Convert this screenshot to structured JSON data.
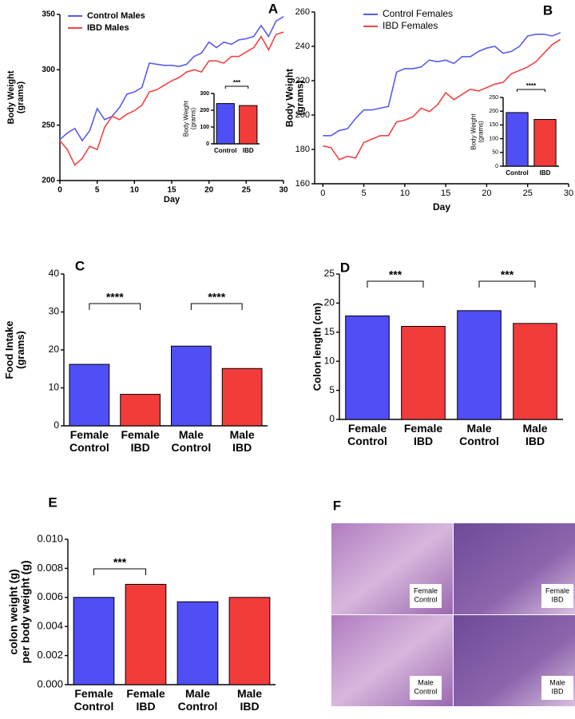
{
  "chart_data": [
    {
      "type": "line",
      "panel": "A",
      "xlabel": "Day",
      "ylabel": "Body Weight (grams)",
      "x": [
        0,
        1,
        2,
        3,
        4,
        5,
        6,
        7,
        8,
        9,
        10,
        11,
        12,
        13,
        14,
        15,
        16,
        17,
        18,
        19,
        20,
        21,
        22,
        23,
        24,
        25,
        26,
        27,
        28,
        29,
        30
      ],
      "series": [
        {
          "name": "Control Males",
          "color": "#5a5af0",
          "values": [
            237,
            243,
            247,
            236,
            245,
            265,
            255,
            258,
            266,
            278,
            280,
            284,
            306,
            305,
            304,
            304,
            303,
            305,
            312,
            315,
            325,
            320,
            325,
            323,
            327,
            328,
            330,
            340,
            330,
            344,
            348
          ]
        },
        {
          "name": "IBD Males",
          "color": "#f04444",
          "values": [
            236,
            228,
            214,
            220,
            231,
            228,
            248,
            258,
            255,
            260,
            263,
            268,
            280,
            282,
            286,
            290,
            293,
            298,
            300,
            298,
            308,
            308,
            306,
            312,
            312,
            316,
            320,
            330,
            318,
            332,
            334
          ]
        }
      ],
      "xlim": [
        0,
        30
      ],
      "xticks": [
        0,
        5,
        10,
        15,
        20,
        25,
        30
      ],
      "ylim": [
        200,
        350
      ],
      "yticks": [
        200,
        250,
        300,
        350
      ]
    },
    {
      "type": "bar",
      "ylabel": "Body Weight (grams)",
      "categories": [
        "Control",
        "IBD"
      ],
      "values": [
        240,
        228
      ],
      "colors": [
        "#4f4ff5",
        "#f23c3c"
      ],
      "ylim": [
        0,
        300
      ],
      "yticks": [
        0,
        100,
        200,
        300
      ],
      "annotations": [
        "***"
      ]
    },
    {
      "type": "line",
      "panel": "B",
      "xlabel": "Day",
      "ylabel": "Body Weight (grams)",
      "x": [
        0,
        1,
        2,
        3,
        4,
        5,
        6,
        7,
        8,
        9,
        10,
        11,
        12,
        13,
        14,
        15,
        16,
        17,
        18,
        19,
        20,
        21,
        22,
        23,
        24,
        25,
        26,
        27,
        28,
        29
      ],
      "series": [
        {
          "name": "Control Females",
          "color": "#5a5af0",
          "values": [
            188,
            188,
            191,
            192,
            198,
            203,
            203,
            204,
            205,
            225,
            227,
            227,
            228,
            232,
            231,
            232,
            230,
            234,
            234,
            237,
            239,
            240,
            236,
            237,
            240,
            246,
            247,
            247,
            246,
            248
          ]
        },
        {
          "name": "IBD Females",
          "color": "#f04444",
          "values": [
            182,
            181,
            174,
            176,
            175,
            184,
            186,
            188,
            188,
            196,
            197,
            199,
            204,
            202,
            206,
            213,
            209,
            212,
            215,
            214,
            216,
            218,
            219,
            224,
            226,
            228,
            231,
            236,
            241,
            244
          ]
        }
      ],
      "xlim": [
        -1,
        30
      ],
      "xticks": [
        0,
        5,
        10,
        15,
        20,
        25,
        30
      ],
      "ylim": [
        160,
        260
      ],
      "yticks": [
        160,
        180,
        200,
        220,
        240,
        260
      ]
    },
    {
      "type": "bar",
      "ylabel": "Body Weight (grams)",
      "categories": [
        "Control",
        "IBD"
      ],
      "values": [
        195,
        170
      ],
      "colors": [
        "#4f4ff5",
        "#f23c3c"
      ],
      "ylim": [
        0,
        250
      ],
      "yticks": [
        0,
        50,
        100,
        150,
        200,
        250
      ],
      "annotations": [
        "****"
      ]
    },
    {
      "type": "bar",
      "panel": "C",
      "ylabel": "Food Intake (grams)",
      "categories": [
        "Female Control",
        "Female IBD",
        "Male Control",
        "Male IBD"
      ],
      "values": [
        16.2,
        8.3,
        21.0,
        15.1
      ],
      "colors": [
        "#4f4ff5",
        "#f23c3c",
        "#4f4ff5",
        "#f23c3c"
      ],
      "ylim": [
        0,
        40
      ],
      "yticks": [
        0,
        10,
        20,
        30,
        40
      ],
      "annotations": [
        "****",
        "****"
      ]
    },
    {
      "type": "bar",
      "panel": "D",
      "ylabel": "Colon length (cm)",
      "categories": [
        "Female Control",
        "Female IBD",
        "Male Control",
        "Male IBD"
      ],
      "values": [
        17.8,
        16.0,
        18.7,
        16.5
      ],
      "colors": [
        "#4f4ff5",
        "#f23c3c",
        "#4f4ff5",
        "#f23c3c"
      ],
      "ylim": [
        0,
        25
      ],
      "yticks": [
        0,
        5,
        10,
        15,
        20,
        25
      ],
      "annotations": [
        "***",
        "***"
      ]
    },
    {
      "type": "bar",
      "panel": "E",
      "ylabel": "colon weight (g) per body weight (g)",
      "categories": [
        "Female Control",
        "Female IBD",
        "Male Control",
        "Male IBD"
      ],
      "values": [
        0.006,
        0.0069,
        0.0057,
        0.006
      ],
      "colors": [
        "#4f4ff5",
        "#f23c3c",
        "#4f4ff5",
        "#f23c3c"
      ],
      "ylim": [
        0,
        0.01
      ],
      "yticks": [
        {
          "value": 0,
          "label": "0.000"
        },
        {
          "value": 0.002,
          "label": "0.002"
        },
        {
          "value": 0.004,
          "label": "0.004"
        },
        {
          "value": 0.006,
          "label": "0.006"
        },
        {
          "value": 0.008,
          "label": "0.008"
        },
        {
          "value": 0.01,
          "label": "0.010"
        }
      ],
      "annotations": [
        "***"
      ]
    }
  ],
  "panel_f": {
    "panel": "F",
    "images": [
      "Female Control",
      "Female IBD",
      "Male Control",
      "Male IBD"
    ]
  }
}
